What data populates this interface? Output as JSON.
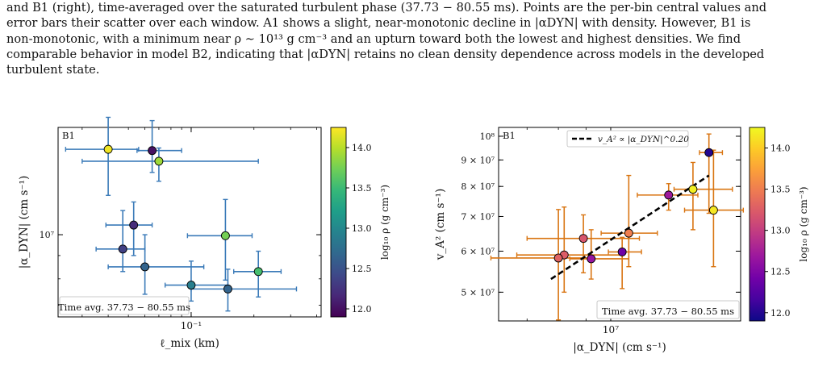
{
  "caption": {
    "lines": [
      "and B1 (right), time-averaged over the saturated turbulent phase (37.73 − 80.55 ms). Points are the per-bin central values and",
      "error bars their scatter over each window. A1 shows a slight, near-monotonic decline in |αDYN| with density. However, B1 is",
      "non-monotonic, with a minimum near ρ ∼ 10¹³ g cm⁻³ and an upturn toward both the lowest and highest densities. We find",
      "comparable behavior in model B2, indicating that |αDYN| retains no clean density dependence across models in the developed",
      "turbulent state."
    ]
  },
  "chart_data": [
    {
      "type": "scatter",
      "panel_label": "B1",
      "annotation": "Time avg. 37.73 − 80.55 ms",
      "xlabel": "ℓ_mix (km)",
      "ylabel": "|α_DYN| (cm s⁻¹)",
      "xscale": "log",
      "yscale": "log",
      "xlim": [
        0.023,
        0.42
      ],
      "ylim": [
        6600000.0,
        17200000.0
      ],
      "x_ticks": [
        {
          "value": 0.1,
          "label": "10⁻¹"
        }
      ],
      "y_ticks": [
        {
          "value": 10000000.0,
          "label": "10⁷"
        }
      ],
      "colorbar": {
        "label": "log₁₀ ρ (g cm⁻³)",
        "min": 11.9,
        "max": 14.25,
        "ticks": [
          "12.0",
          "12.5",
          "13.0",
          "13.5",
          "14.0"
        ],
        "colormap": "viridis"
      },
      "error_color": "#3a7ab8",
      "points": [
        {
          "x": 0.04,
          "y": 15400000.0,
          "xerr": [
            0.015,
            0.016
          ],
          "yerr": [
            3200000.0,
            2700000.0
          ],
          "c": 14.2
        },
        {
          "x": 0.065,
          "y": 15300000.0,
          "xerr": [
            0.01,
            0.025
          ],
          "yerr": [
            1600000.0,
            2500000.0
          ],
          "c": 12.0
        },
        {
          "x": 0.07,
          "y": 14500000.0,
          "xerr": [
            0.04,
            0.14
          ],
          "yerr": [
            1400000.0,
            1000000.0
          ],
          "c": 13.9
        },
        {
          "x": 0.053,
          "y": 10500000.0,
          "xerr": [
            0.014,
            0.012
          ],
          "yerr": [
            1500000.0,
            1300000.0
          ],
          "c": 12.2
        },
        {
          "x": 0.047,
          "y": 9300000.0,
          "xerr": [
            0.012,
            0.013
          ],
          "yerr": [
            1000000.0,
            2000000.0
          ],
          "c": 12.35
        },
        {
          "x": 0.146,
          "y": 9950000.0,
          "xerr": [
            0.05,
            0.05
          ],
          "yerr": [
            2000000.0,
            2000000.0
          ],
          "c": 13.75
        },
        {
          "x": 0.06,
          "y": 8500000.0,
          "xerr": [
            0.02,
            0.055
          ],
          "yerr": [
            1100000.0,
            1500000.0
          ],
          "c": 12.65
        },
        {
          "x": 0.21,
          "y": 8300000.0,
          "xerr": [
            0.05,
            0.06
          ],
          "yerr": [
            1000000.0,
            900000.0
          ],
          "c": 13.55
        },
        {
          "x": 0.1,
          "y": 7750000.0,
          "xerr": [
            0.025,
            0.05
          ],
          "yerr": [
            600000.0,
            1000000.0
          ],
          "c": 12.9
        },
        {
          "x": 0.15,
          "y": 7600000.0,
          "xerr": [
            0.05,
            0.17
          ],
          "yerr": [
            800000.0,
            800000.0
          ],
          "c": 12.65
        }
      ]
    },
    {
      "type": "scatter",
      "panel_label": "B1",
      "annotation": "Time avg. 37.73 − 80.55 ms",
      "xlabel": "|α_DYN| (cm s⁻¹)",
      "ylabel": "v_A² (cm s⁻¹)",
      "xscale": "log",
      "yscale": "log",
      "xlim": [
        6200000.0,
        17400000.0
      ],
      "ylim": [
        44000000.0,
        104000000.0
      ],
      "x_ticks": [
        {
          "value": 10000000.0,
          "label": "10⁷"
        }
      ],
      "y_ticks": [
        {
          "value": 50000000.0,
          "label": "5 × 10⁷"
        },
        {
          "value": 60000000.0,
          "label": "6 × 10⁷"
        },
        {
          "value": 70000000.0,
          "label": "7 × 10⁷"
        },
        {
          "value": 80000000.0,
          "label": "8 × 10⁷"
        },
        {
          "value": 90000000.0,
          "label": "9 × 10⁷"
        },
        {
          "value": 100000000.0,
          "label": "10⁸"
        }
      ],
      "legend": {
        "label": "v_A² ∝ |α_DYN|^0.20",
        "placement": "top"
      },
      "fit": {
        "x0": 7750000.0,
        "y0": 53000000.0,
        "x1": 15200000.0,
        "y1": 84000000.0
      },
      "colorbar": {
        "label": "log₁₀ ρ (g cm⁻³)",
        "min": 11.9,
        "max": 14.25,
        "ticks": [
          "12.0",
          "12.5",
          "13.0",
          "13.5",
          "14.0"
        ],
        "colormap": "plasma"
      },
      "error_color": "#d97512",
      "points": [
        {
          "x": 15200000.0,
          "y": 93000000.0,
          "xerr": [
            600000.0,
            900000.0
          ],
          "yerr": [
            22000000.0,
            8000000.0
          ],
          "c": 12.0
        },
        {
          "x": 14200000.0,
          "y": 79000000.0,
          "xerr": [
            1100000.0,
            2600000.0
          ],
          "yerr": [
            13000000.0,
            10000000.0
          ],
          "c": 14.2
        },
        {
          "x": 15500000.0,
          "y": 72000000.0,
          "xerr": [
            1800000.0,
            2100000.0
          ],
          "yerr": [
            16000000.0,
            22000000.0
          ],
          "c": 14.15
        },
        {
          "x": 12800000.0,
          "y": 77000000.0,
          "xerr": [
            1600000.0,
            1700000.0
          ],
          "yerr": [
            5000000.0,
            4000000.0
          ],
          "c": 12.7
        },
        {
          "x": 10800000.0,
          "y": 65000000.0,
          "xerr": [
            1200000.0,
            1400000.0
          ],
          "yerr": [
            9000000.0,
            19000000.0
          ],
          "c": 13.5
        },
        {
          "x": 8900000.0,
          "y": 63500000.0,
          "xerr": [
            1900000.0,
            2400000.0
          ],
          "yerr": [
            9000000.0,
            7000000.0
          ],
          "c": 13.2
        },
        {
          "x": 10500000.0,
          "y": 59800000.0,
          "xerr": [
            600000.0,
            900000.0
          ],
          "yerr": [
            9000000.0,
            4000000.0
          ],
          "c": 12.4
        },
        {
          "x": 8200000.0,
          "y": 59000000.0,
          "xerr": [
            1500000.0,
            2300000.0
          ],
          "yerr": [
            9000000.0,
            14000000.0
          ],
          "c": 13.25
        },
        {
          "x": 9200000.0,
          "y": 58000000.0,
          "xerr": [
            800000.0,
            1600000.0
          ],
          "yerr": [
            5000000.0,
            8000000.0
          ],
          "c": 12.65
        },
        {
          "x": 8000000.0,
          "y": 58200000.0,
          "xerr": [
            2000000.0,
            1300000.0
          ],
          "yerr": [
            14000000.0,
            14000000.0
          ],
          "c": 13.3
        }
      ]
    }
  ]
}
